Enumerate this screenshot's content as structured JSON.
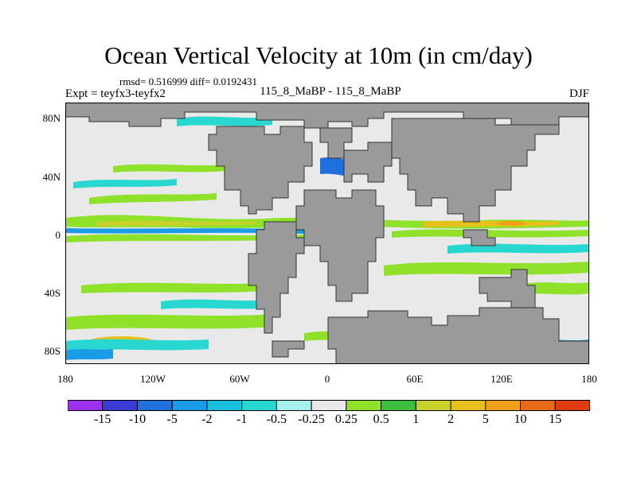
{
  "title": "Ocean Vertical Velocity at 10m (in cm/day)",
  "stats": "rmsd= 0.516999 diff= 0.0192431",
  "experiment": "Expt = teyfx3-teyfx2",
  "subtitle": "115_8_MaBP - 115_8_MaBP",
  "season": "DJF",
  "y_axis_labels": [
    "80N",
    "40N",
    "0",
    "40S",
    "80S"
  ],
  "x_axis_labels": [
    "180",
    "120W",
    "60W",
    "0",
    "60E",
    "120E",
    "180"
  ],
  "colorbar": {
    "colors": [
      "#9b30f0",
      "#3b3bd8",
      "#1f6fdc",
      "#1a9be6",
      "#19bfdc",
      "#28d8d0",
      "#a6f0ec",
      "#e9e9e9",
      "#8fe12a",
      "#3fbf3f",
      "#c8d22a",
      "#e8c01c",
      "#f0a018",
      "#e66a18",
      "#e03c14"
    ],
    "labels": [
      "-15",
      "-10",
      "-5",
      "-2",
      "-1",
      "-0.5",
      "-0.25",
      "0.25",
      "0.5",
      "1",
      "2",
      "5",
      "10",
      "15"
    ]
  },
  "chart_data": {
    "type": "heatmap",
    "title": "Ocean Vertical Velocity at 10m (in cm/day)",
    "variable": "vertical velocity difference",
    "units": "cm/day",
    "levels": [
      -15,
      -10,
      -5,
      -2,
      -1,
      -0.5,
      -0.25,
      0.25,
      0.5,
      1,
      2,
      5,
      10,
      15
    ],
    "x_range": [
      -180,
      180
    ],
    "y_range": [
      -90,
      90
    ],
    "xlabels": [
      "180",
      "120W",
      "60W",
      "0",
      "60E",
      "120E",
      "180"
    ],
    "ylabels": [
      "80N",
      "40N",
      "0",
      "40S",
      "80S"
    ]
  }
}
